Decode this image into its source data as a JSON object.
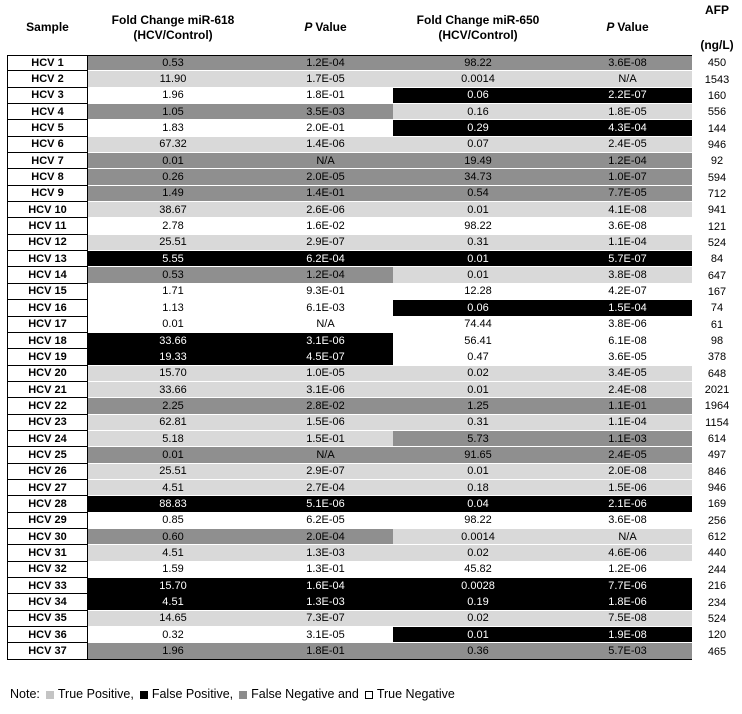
{
  "title_header": {
    "sample": "Sample",
    "fc618": [
      "Fold Change miR-618",
      "(HCV/Control)"
    ],
    "p1": {
      "p": "P",
      "rest": "Value"
    },
    "fc650": [
      "Fold Change miR-650",
      "(HCV/Control)"
    ],
    "p2": {
      "p": "P",
      "rest": "Value"
    },
    "afp": [
      "AFP",
      "(ng/L)"
    ]
  },
  "cell_colors": {
    "tp": "#d9d9d9",
    "fp": "#000000",
    "fn": "#8f8f8f",
    "tn": "#ffffff"
  },
  "legend_colors": {
    "tp": "#c4c4c4",
    "fp": "#000000",
    "fn": "#8c8c8c",
    "tn": "#ffffff"
  },
  "note": {
    "prefix": "Note:",
    "items": [
      {
        "key": "tp",
        "label": "True Positive,"
      },
      {
        "key": "fp",
        "label": "False Positive,"
      },
      {
        "key": "fn",
        "label": "False Negative and"
      },
      {
        "key": "tn",
        "label": "True Negative"
      }
    ]
  },
  "rows": [
    {
      "sample": "HCV 1",
      "fc618": "0.53",
      "p618": "1.2E-04",
      "c618": "fn",
      "fc650": "98.22",
      "p650": "3.6E-08",
      "c650": "fn",
      "afp": "450"
    },
    {
      "sample": "HCV 2",
      "fc618": "11.90",
      "p618": "1.7E-05",
      "c618": "tp",
      "fc650": "0.0014",
      "p650": "N/A",
      "c650": "tp",
      "afp": "1543"
    },
    {
      "sample": "HCV 3",
      "fc618": "1.96",
      "p618": "1.8E-01",
      "c618": "tn",
      "fc650": "0.06",
      "p650": "2.2E-07",
      "c650": "fp",
      "afp": "160"
    },
    {
      "sample": "HCV 4",
      "fc618": "1.05",
      "p618": "3.5E-03",
      "c618": "fn",
      "fc650": "0.16",
      "p650": "1.8E-05",
      "c650": "tp",
      "afp": "556"
    },
    {
      "sample": "HCV 5",
      "fc618": "1.83",
      "p618": "2.0E-01",
      "c618": "tn",
      "fc650": "0.29",
      "p650": "4.3E-04",
      "c650": "fp",
      "afp": "144"
    },
    {
      "sample": "HCV 6",
      "fc618": "67.32",
      "p618": "1.4E-06",
      "c618": "tp",
      "fc650": "0.07",
      "p650": "2.4E-05",
      "c650": "tp",
      "afp": "946"
    },
    {
      "sample": "HCV 7",
      "fc618": "0.01",
      "p618": "N/A",
      "c618": "fn",
      "fc650": "19.49",
      "p650": "1.2E-04",
      "c650": "fn",
      "afp": "92"
    },
    {
      "sample": "HCV 8",
      "fc618": "0.26",
      "p618": "2.0E-05",
      "c618": "fn",
      "fc650": "34.73",
      "p650": "1.0E-07",
      "c650": "fn",
      "afp": "594"
    },
    {
      "sample": "HCV 9",
      "fc618": "1.49",
      "p618": "1.4E-01",
      "c618": "fn",
      "fc650": "0.54",
      "p650": "7.7E-05",
      "c650": "fn",
      "afp": "712"
    },
    {
      "sample": "HCV 10",
      "fc618": "38.67",
      "p618": "2.6E-06",
      "c618": "tp",
      "fc650": "0.01",
      "p650": "4.1E-08",
      "c650": "tp",
      "afp": "941"
    },
    {
      "sample": "HCV 11",
      "fc618": "2.78",
      "p618": "1.6E-02",
      "c618": "tn",
      "fc650": "98.22",
      "p650": "3.6E-08",
      "c650": "tn",
      "afp": "121"
    },
    {
      "sample": "HCV 12",
      "fc618": "25.51",
      "p618": "2.9E-07",
      "c618": "tp",
      "fc650": "0.31",
      "p650": "1.1E-04",
      "c650": "tp",
      "afp": "524"
    },
    {
      "sample": "HCV 13",
      "fc618": "5.55",
      "p618": "6.2E-04",
      "c618": "fp",
      "fc650": "0.01",
      "p650": "5.7E-07",
      "c650": "fp",
      "afp": "84"
    },
    {
      "sample": "HCV 14",
      "fc618": "0.53",
      "p618": "1.2E-04",
      "c618": "fn",
      "fc650": "0.01",
      "p650": "3.8E-08",
      "c650": "tp",
      "afp": "647"
    },
    {
      "sample": "HCV 15",
      "fc618": "1.71",
      "p618": "9.3E-01",
      "c618": "tn",
      "fc650": "12.28",
      "p650": "4.2E-07",
      "c650": "tn",
      "afp": "167"
    },
    {
      "sample": "HCV 16",
      "fc618": "1.13",
      "p618": "6.1E-03",
      "c618": "tn",
      "fc650": "0.06",
      "p650": "1.5E-04",
      "c650": "fp",
      "afp": "74"
    },
    {
      "sample": "HCV 17",
      "fc618": "0.01",
      "p618": "N/A",
      "c618": "tn",
      "fc650": "74.44",
      "p650": "3.8E-06",
      "c650": "tn",
      "afp": "61"
    },
    {
      "sample": "HCV 18",
      "fc618": "33.66",
      "p618": "3.1E-06",
      "c618": "fp",
      "fc650": "56.41",
      "p650": "6.1E-08",
      "c650": "tn",
      "afp": "98"
    },
    {
      "sample": "HCV 19",
      "fc618": "19.33",
      "p618": "4.5E-07",
      "c618": "fp",
      "fc650": "0.47",
      "p650": "3.6E-05",
      "c650": "tn",
      "afp": "378"
    },
    {
      "sample": "HCV 20",
      "fc618": "15.70",
      "p618": "1.0E-05",
      "c618": "tp",
      "fc650": "0.02",
      "p650": "3.4E-05",
      "c650": "tp",
      "afp": "648"
    },
    {
      "sample": "HCV 21",
      "fc618": "33.66",
      "p618": "3.1E-06",
      "c618": "tp",
      "fc650": "0.01",
      "p650": "2.4E-08",
      "c650": "tp",
      "afp": "2021"
    },
    {
      "sample": "HCV 22",
      "fc618": "2.25",
      "p618": "2.8E-02",
      "c618": "fn",
      "fc650": "1.25",
      "p650": "1.1E-01",
      "c650": "fn",
      "afp": "1964"
    },
    {
      "sample": "HCV 23",
      "fc618": "62.81",
      "p618": "1.5E-06",
      "c618": "tp",
      "fc650": "0.31",
      "p650": "1.1E-04",
      "c650": "tp",
      "afp": "1154"
    },
    {
      "sample": "HCV 24",
      "fc618": "5.18",
      "p618": "1.5E-01",
      "c618": "tp",
      "fc650": "5.73",
      "p650": "1.1E-03",
      "c650": "fn",
      "afp": "614"
    },
    {
      "sample": "HCV 25",
      "fc618": "0.01",
      "p618": "N/A",
      "c618": "fn",
      "fc650": "91.65",
      "p650": "2.4E-05",
      "c650": "fn",
      "afp": "497"
    },
    {
      "sample": "HCV 26",
      "fc618": "25.51",
      "p618": "2.9E-07",
      "c618": "tp",
      "fc650": "0.01",
      "p650": "2.0E-08",
      "c650": "tp",
      "afp": "846"
    },
    {
      "sample": "HCV 27",
      "fc618": "4.51",
      "p618": "2.7E-04",
      "c618": "tp",
      "fc650": "0.18",
      "p650": "1.5E-06",
      "c650": "tp",
      "afp": "946"
    },
    {
      "sample": "HCV 28",
      "fc618": "88.83",
      "p618": "5.1E-06",
      "c618": "fp",
      "fc650": "0.04",
      "p650": "2.1E-06",
      "c650": "fp",
      "afp": "169"
    },
    {
      "sample": "HCV 29",
      "fc618": "0.85",
      "p618": "6.2E-05",
      "c618": "tn",
      "fc650": "98.22",
      "p650": "3.6E-08",
      "c650": "tn",
      "afp": "256"
    },
    {
      "sample": "HCV 30",
      "fc618": "0.60",
      "p618": "2.0E-04",
      "c618": "fn",
      "fc650": "0.0014",
      "p650": "N/A",
      "c650": "tp",
      "afp": "612"
    },
    {
      "sample": "HCV 31",
      "fc618": "4.51",
      "p618": "1.3E-03",
      "c618": "tp",
      "fc650": "0.02",
      "p650": "4.6E-06",
      "c650": "tp",
      "afp": "440"
    },
    {
      "sample": "HCV 32",
      "fc618": "1.59",
      "p618": "1.3E-01",
      "c618": "tn",
      "fc650": "45.82",
      "p650": "1.2E-06",
      "c650": "tn",
      "afp": "244"
    },
    {
      "sample": "HCV 33",
      "fc618": "15.70",
      "p618": "1.6E-04",
      "c618": "fp",
      "fc650": "0.0028",
      "p650": "7.7E-06",
      "c650": "fp",
      "afp": "216"
    },
    {
      "sample": "HCV 34",
      "fc618": "4.51",
      "p618": "1.3E-03",
      "c618": "fp",
      "fc650": "0.19",
      "p650": "1.8E-06",
      "c650": "fp",
      "afp": "234"
    },
    {
      "sample": "HCV 35",
      "fc618": "14.65",
      "p618": "7.3E-07",
      "c618": "tp",
      "fc650": "0.02",
      "p650": "7.5E-08",
      "c650": "tp",
      "afp": "524"
    },
    {
      "sample": "HCV 36",
      "fc618": "0.32",
      "p618": "3.1E-05",
      "c618": "tn",
      "fc650": "0.01",
      "p650": "1.9E-08",
      "c650": "fp",
      "afp": "120"
    },
    {
      "sample": "HCV 37",
      "fc618": "1.96",
      "p618": "1.8E-01",
      "c618": "fn",
      "fc650": "0.36",
      "p650": "5.7E-03",
      "c650": "fn",
      "afp": "465"
    }
  ]
}
